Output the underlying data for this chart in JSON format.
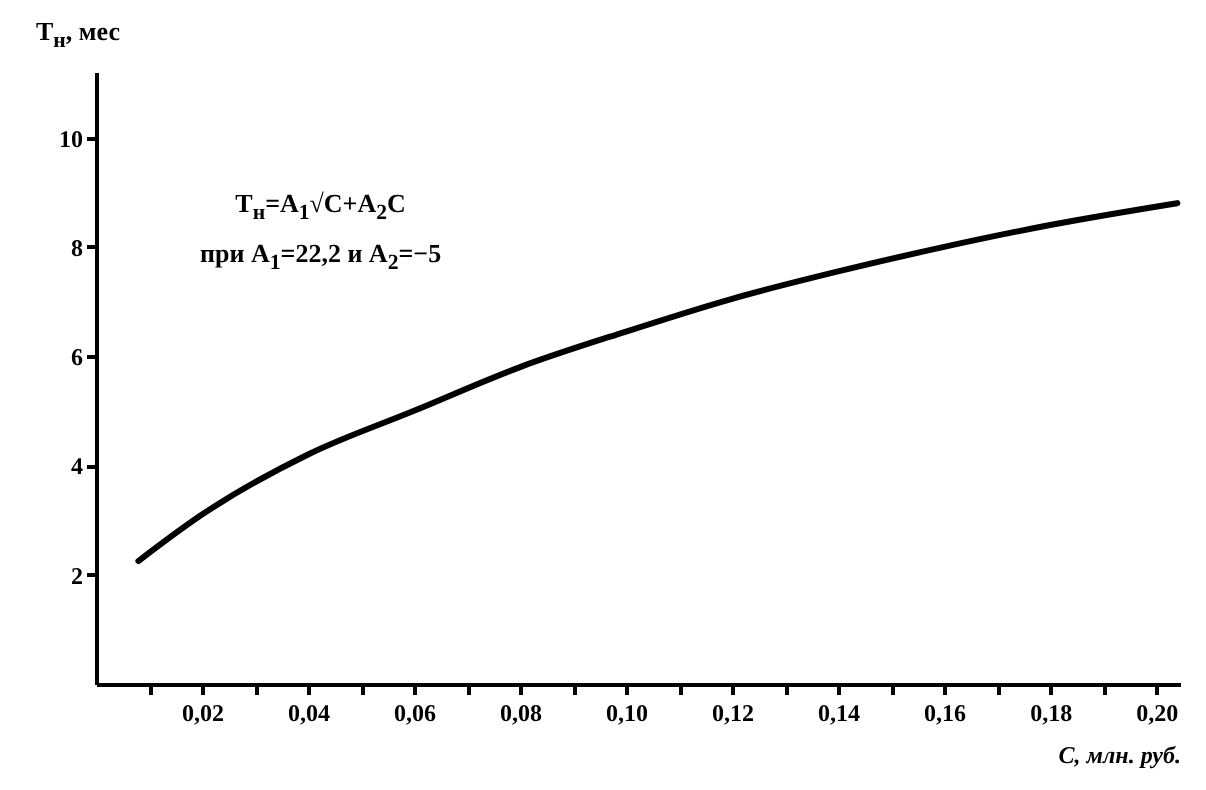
{
  "chart_data": {
    "type": "line",
    "ylabel": "T$_{н}$, мес",
    "xlabel": "C, млн. руб.",
    "annotations": [
      "T$_{н}$=A$_{1}$√C+A$_{2}$C",
      "при A$_{1}$=22,2 и A$_{2}$=−5"
    ],
    "x": [
      0.008,
      0.02,
      0.04,
      0.06,
      0.08,
      0.1,
      0.12,
      0.14,
      0.16,
      0.18,
      0.204
    ],
    "series": [
      {
        "color": "#000000",
        "values": [
          2.25,
          3.1,
          4.2,
          5.0,
          5.8,
          6.45,
          7.05,
          7.55,
          8.0,
          8.4,
          8.8
        ]
      }
    ],
    "xlim": [
      0,
      0.2045
    ],
    "ylim": [
      0,
      11.2
    ],
    "xticks": [
      {
        "value": 0.01,
        "label": null
      },
      {
        "value": 0.02,
        "label": "0,02"
      },
      {
        "value": 0.03,
        "label": null
      },
      {
        "value": 0.04,
        "label": "0,04"
      },
      {
        "value": 0.05,
        "label": null
      },
      {
        "value": 0.06,
        "label": "0,06"
      },
      {
        "value": 0.07,
        "label": null
      },
      {
        "value": 0.08,
        "label": "0,08"
      },
      {
        "value": 0.09,
        "label": null
      },
      {
        "value": 0.1,
        "label": "0,10"
      },
      {
        "value": 0.11,
        "label": null
      },
      {
        "value": 0.12,
        "label": "0,12"
      },
      {
        "value": 0.13,
        "label": null
      },
      {
        "value": 0.14,
        "label": "0,14"
      },
      {
        "value": 0.15,
        "label": null
      },
      {
        "value": 0.16,
        "label": "0,16"
      },
      {
        "value": 0.17,
        "label": null
      },
      {
        "value": 0.18,
        "label": "0,18"
      },
      {
        "value": 0.19,
        "label": null
      },
      {
        "value": 0.2,
        "label": "0,20"
      }
    ],
    "yticks": [
      2,
      4,
      6,
      8,
      10
    ],
    "grid": false,
    "legend": false,
    "line_style": "solid"
  }
}
